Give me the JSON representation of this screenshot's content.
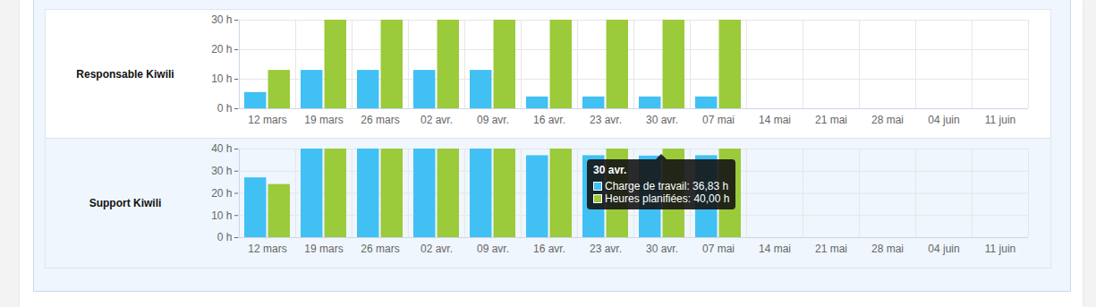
{
  "chart_data": [
    {
      "type": "bar",
      "title": "Responsable Kiwili",
      "categories": [
        "12 mars",
        "19 mars",
        "26 mars",
        "02 avr.",
        "09 avr.",
        "16 avr.",
        "23 avr.",
        "30 avr.",
        "07 mai",
        "14 mai",
        "21 mai",
        "28 mai",
        "04 juin",
        "11 juin"
      ],
      "series": [
        {
          "name": "Charge de travail",
          "color": "#41c0f4",
          "values": [
            5.5,
            13,
            13,
            13,
            13,
            4,
            4,
            4,
            4,
            0,
            0,
            0,
            0,
            0
          ]
        },
        {
          "name": "Heures planifiées",
          "color": "#9bca3b",
          "values": [
            13,
            30,
            30,
            30,
            30,
            30,
            30,
            30,
            30,
            0,
            0,
            0,
            0,
            0
          ]
        }
      ],
      "ylim": [
        0,
        30
      ],
      "yticks": [
        {
          "value": 0,
          "label": "0 h"
        },
        {
          "value": 10,
          "label": "10 h"
        },
        {
          "value": 20,
          "label": "20 h"
        },
        {
          "value": 30,
          "label": "30 h"
        }
      ],
      "grid": true
    },
    {
      "type": "bar",
      "title": "Support Kiwili",
      "categories": [
        "12 mars",
        "19 mars",
        "26 mars",
        "02 avr.",
        "09 avr.",
        "16 avr.",
        "23 avr.",
        "30 avr.",
        "07 mai",
        "14 mai",
        "21 mai",
        "28 mai",
        "04 juin",
        "11 juin"
      ],
      "series": [
        {
          "name": "Charge de travail",
          "color": "#41c0f4",
          "values": [
            27,
            40,
            40,
            40,
            40,
            37,
            37,
            36.83,
            37,
            0,
            0,
            0,
            0,
            0
          ]
        },
        {
          "name": "Heures planifiées",
          "color": "#9bca3b",
          "values": [
            24,
            40,
            40,
            40,
            40,
            40,
            40,
            40,
            40,
            0,
            0,
            0,
            0,
            0
          ]
        }
      ],
      "ylim": [
        0,
        40
      ],
      "yticks": [
        {
          "value": 0,
          "label": "0 h"
        },
        {
          "value": 10,
          "label": "10 h"
        },
        {
          "value": 20,
          "label": "20 h"
        },
        {
          "value": 30,
          "label": "30 h"
        },
        {
          "value": 40,
          "label": "40 h"
        }
      ],
      "grid": true,
      "annotations": [
        {
          "category": "30 avr.",
          "lines": [
            "Charge de travail: 36,83 h",
            "Heures planifiées: 40,00 h"
          ]
        }
      ]
    }
  ]
}
